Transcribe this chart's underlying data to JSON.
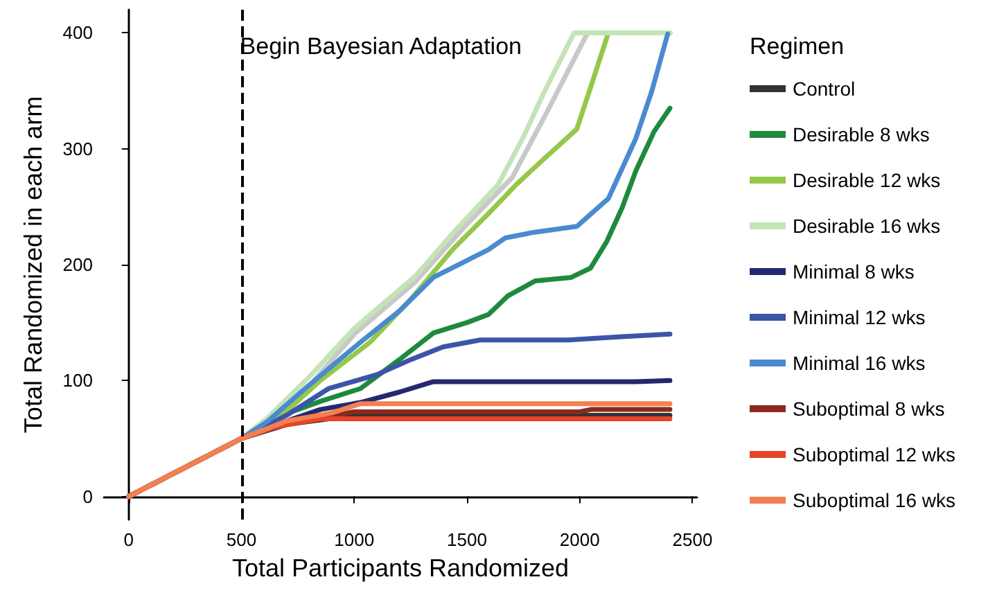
{
  "chart_data": {
    "type": "line",
    "xlabel": "Total Participants Randomized",
    "ylabel": "Total Randomized in each arm",
    "legend_title": "Regimen",
    "legend": "right",
    "grid": false,
    "marker": "none",
    "line_style": "solid",
    "xlim": [
      -110,
      2520
    ],
    "xticks": [
      0,
      500,
      1000,
      1500,
      2000,
      2500
    ],
    "ylim": [
      -20,
      420
    ],
    "yticks": [
      0,
      100,
      200,
      300,
      400
    ],
    "ref_lines": [
      {
        "axis": "x",
        "value": 500,
        "label": "Begin Bayesian Adaptation",
        "line_style": "dashed",
        "color": "#000000"
      }
    ],
    "series": [
      {
        "name": null,
        "color": "#c8c8c8",
        "x": [
          0,
          500,
          620,
          800,
          1000,
          1270,
          1500,
          1700,
          1850,
          2035,
          2400
        ],
        "values": [
          0,
          50,
          63,
          95,
          140,
          185,
          235,
          275,
          330,
          400,
          400
        ]
      },
      {
        "name": "Control",
        "color": "#333333",
        "x": [
          0,
          500,
          700,
          1000,
          2400
        ],
        "values": [
          0,
          50,
          62,
          70,
          70
        ]
      },
      {
        "name": "Desirable 8 wks",
        "color": "#1f8a3c",
        "x": [
          0,
          500,
          680,
          850,
          1027,
          1200,
          1351,
          1500,
          1595,
          1681,
          1803,
          1962,
          2048,
          2120,
          2188,
          2249,
          2330,
          2400
        ],
        "values": [
          0,
          50,
          70,
          82,
          93,
          118,
          141,
          150,
          157,
          173,
          186,
          189,
          197,
          220,
          249,
          281,
          315,
          335
        ]
      },
      {
        "name": "Desirable 12 wks",
        "color": "#95c84a",
        "x": [
          0,
          500,
          680,
          850,
          1070,
          1250,
          1436,
          1600,
          1718,
          1840,
          1987,
          2060,
          2127,
          2400
        ],
        "values": [
          0,
          50,
          70,
          100,
          133,
          170,
          213,
          245,
          269,
          291,
          317,
          360,
          400,
          400
        ]
      },
      {
        "name": "Desirable 16 wks",
        "color": "#c4e4b8",
        "x": [
          0,
          500,
          617,
          800,
          1000,
          1271,
          1450,
          1638,
          1750,
          1840,
          1975,
          2400
        ],
        "values": [
          0,
          50,
          68,
          103,
          145,
          190,
          230,
          269,
          310,
          348,
          400,
          400
        ]
      },
      {
        "name": "Minimal 8 wks",
        "color": "#26286e",
        "x": [
          0,
          500,
          700,
          850,
          1027,
          1200,
          1351,
          1800,
          2250,
          2400
        ],
        "values": [
          0,
          50,
          65,
          75,
          81,
          90,
          99,
          99,
          99,
          100
        ]
      },
      {
        "name": "Minimal 12 wks",
        "color": "#3b55a8",
        "x": [
          0,
          500,
          700,
          886,
          1100,
          1250,
          1394,
          1559,
          1950,
          2200,
          2400
        ],
        "values": [
          0,
          50,
          70,
          93,
          105,
          118,
          129,
          135,
          135,
          138,
          140
        ]
      },
      {
        "name": "Minimal 16 wks",
        "color": "#4a8ad0",
        "x": [
          0,
          500,
          617,
          782,
          1027,
          1200,
          1351,
          1595,
          1669,
          1800,
          1987,
          2127,
          2249,
          2320,
          2390
        ],
        "values": [
          0,
          50,
          65,
          93,
          133,
          160,
          189,
          213,
          223,
          228,
          233,
          257,
          309,
          350,
          399
        ]
      },
      {
        "name": "Suboptimal 8 wks",
        "color": "#8a2a1e",
        "x": [
          0,
          500,
          700,
          1000,
          2000,
          2050,
          2400
        ],
        "values": [
          0,
          50,
          63,
          73,
          73,
          75,
          75
        ]
      },
      {
        "name": "Suboptimal 12 wks",
        "color": "#e8442a",
        "x": [
          0,
          500,
          650,
          850,
          2400
        ],
        "values": [
          0,
          50,
          60,
          67,
          67
        ]
      },
      {
        "name": "Suboptimal 16 wks",
        "color": "#f28050",
        "x": [
          0,
          500,
          700,
          900,
          1027,
          2400
        ],
        "values": [
          0,
          50,
          65,
          72,
          80,
          80
        ]
      }
    ]
  }
}
